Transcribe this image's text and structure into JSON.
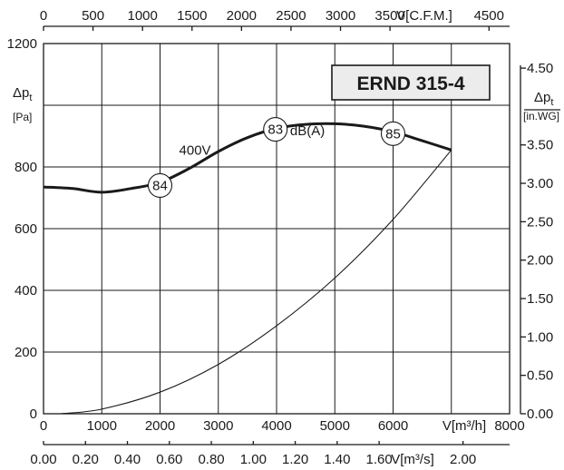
{
  "chart_data": {
    "type": "line",
    "title": "ERND 315-4",
    "x": {
      "label": "V[m³/h]",
      "ticks": [
        0,
        1000,
        2000,
        3000,
        4000,
        5000,
        6000,
        8000
      ],
      "range": [
        0,
        8000
      ]
    },
    "x_top": {
      "label": "V[C.F.M.]",
      "ticks": [
        0,
        500,
        1000,
        1500,
        2000,
        2500,
        3000,
        3500,
        4500
      ],
      "range": [
        0,
        4708
      ]
    },
    "x_bottom2": {
      "label": "V[m³/s]",
      "ticks": [
        "0.00",
        "0.20",
        "0.40",
        "0.60",
        "0.80",
        "1.00",
        "1.20",
        "1.40",
        "1.60",
        "2.00"
      ],
      "range": [
        0,
        2.222
      ]
    },
    "y": {
      "label": "Δp",
      "label_sub": "t",
      "unit": "[Pa]",
      "ticks": [
        0,
        200,
        400,
        600,
        800,
        1200
      ],
      "range": [
        0,
        1200
      ],
      "gridlines": [
        0,
        200,
        400,
        600,
        800,
        1000,
        1200
      ]
    },
    "y_right": {
      "label": "Δp",
      "label_sub": "t",
      "unit": "[in.WG]",
      "ticks": [
        "0.00",
        "0.50",
        "1.00",
        "1.50",
        "2.00",
        "2.50",
        "3.00",
        "3.50",
        "4.50"
      ],
      "range": [
        0,
        4.82
      ]
    },
    "grid": true,
    "series": [
      {
        "name": "400V",
        "x": [
          0,
          500,
          1000,
          1500,
          2000,
          2500,
          3000,
          3500,
          4000,
          4500,
          5000,
          5500,
          6000,
          6500,
          7000
        ],
        "y": [
          735,
          730,
          718,
          730,
          750,
          795,
          850,
          895,
          925,
          938,
          940,
          932,
          914,
          885,
          855
        ]
      },
      {
        "x": [
          300,
          1000,
          2000,
          3000,
          4000,
          5000,
          6000,
          7000
        ],
        "y": [
          0,
          15,
          70,
          160,
          285,
          440,
          630,
          855
        ]
      }
    ],
    "annotations": [
      {
        "text": "84",
        "x": 2000,
        "y": 740
      },
      {
        "text": "83",
        "x": 3980,
        "y": 922
      },
      {
        "text": "85",
        "x": 6000,
        "y": 908
      },
      {
        "text": "dB(A)",
        "x": 4530,
        "y": 917
      },
      {
        "text": "400V",
        "x": 2600,
        "y": 855
      }
    ]
  }
}
